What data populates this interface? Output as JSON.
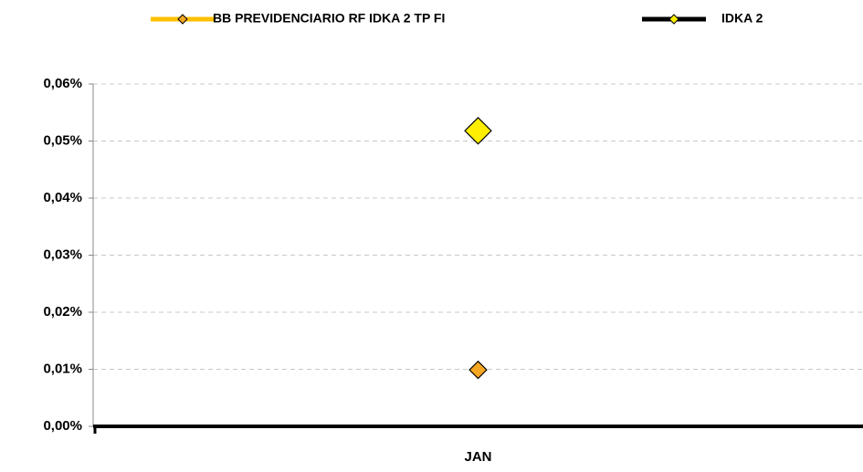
{
  "chart_data": {
    "type": "line",
    "categories": [
      "JAN"
    ],
    "series": [
      {
        "name": "BB PREVIDENCIARIO RF IDKA 2 TP FI",
        "color": "#FFC000",
        "marker_color": "#F5A623",
        "marker_size": 9,
        "values": [
          0.0099
        ]
      },
      {
        "name": "IDKA 2",
        "color": "#000000",
        "marker_color": "#FFEE00",
        "marker_size": 16,
        "values": [
          0.0518
        ]
      }
    ],
    "ylim": [
      0,
      0.06
    ],
    "yticks": [
      {
        "value": 0,
        "label": "0,00%"
      },
      {
        "value": 0.01,
        "label": "0,01%"
      },
      {
        "value": 0.02,
        "label": "0,02%"
      },
      {
        "value": 0.03,
        "label": "0,03%"
      },
      {
        "value": 0.04,
        "label": "0,04%"
      },
      {
        "value": 0.05,
        "label": "0,05%"
      },
      {
        "value": 0.06,
        "label": "0,06%"
      }
    ],
    "grid": true,
    "legend": "top"
  }
}
